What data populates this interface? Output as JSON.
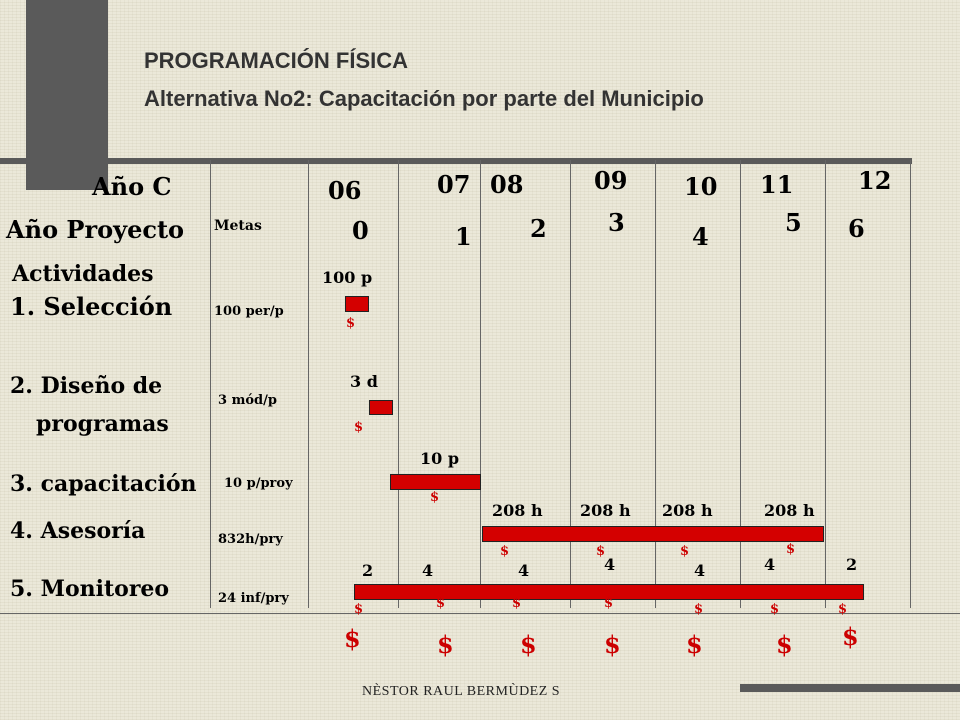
{
  "header": {
    "title": "PROGRAMACIÓN FÍSICA",
    "subtitle": "Alternativa No2: Capacitación por parte del Municipio"
  },
  "labels": {
    "ano_c": "Año C",
    "ano_proyecto": "Año Proyecto",
    "metas": "Metas",
    "actividades": "Actividades"
  },
  "calendar_years": [
    "06",
    "07",
    "08",
    "09",
    "10",
    "11",
    "12"
  ],
  "project_years": [
    "0",
    "1",
    "2",
    "3",
    "4",
    "5",
    "6"
  ],
  "activities": [
    {
      "name": "1. Selección",
      "meta": "100 per/p",
      "bar_label": "100 p"
    },
    {
      "name_line1": "2. Diseño de",
      "name_line2": "programas",
      "meta": "3 mód/p",
      "bar_label": "3 d"
    },
    {
      "name": "3. capacitación",
      "meta": "10 p/proy",
      "bar_label": "10 p"
    },
    {
      "name": "4. Asesoría",
      "meta": "832h/pry",
      "bar_labels": [
        "208 h",
        "208 h",
        "208 h",
        "208 h"
      ]
    },
    {
      "name": "5. Monitoreo",
      "meta": "24 inf/pry",
      "bar_labels": [
        "2",
        "4",
        "4",
        "4",
        "4",
        "4",
        "2"
      ]
    }
  ],
  "currency_symbol": "$",
  "footer": "NÈSTOR RAUL BERMÙDEZ S",
  "colors": {
    "bar": "#d40000",
    "dollar": "#cc0000",
    "background": "#ebe8d9"
  }
}
